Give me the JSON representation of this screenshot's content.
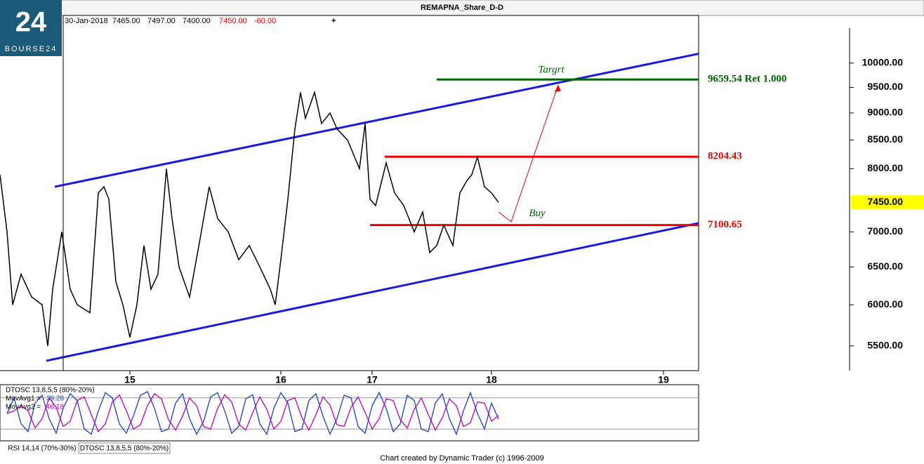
{
  "header": {
    "title": "REMAPNA_Share_D-D",
    "date": "30-Jan-2018",
    "open": "7465.00",
    "high": "7497.00",
    "low": "7400.00",
    "close": "7450.00",
    "change": "-60.00"
  },
  "logo": {
    "mark": "24",
    "text": "BOURSE24"
  },
  "tabs": [
    "RSI 14,14 (70%-30%)",
    "DTOSC 13,8,5,5 (80%-20%)"
  ],
  "footer": "Chart created by Dynamic Trader  (c) 1996-2009",
  "chart_data": [
    {
      "type": "line",
      "log_scale": true,
      "color": "#000000",
      "xlim": [
        0,
        995
      ],
      "xticks": [
        {
          "value": 185,
          "label": "15"
        },
        {
          "value": 400,
          "label": "16"
        },
        {
          "value": 530,
          "label": "17"
        },
        {
          "value": 700,
          "label": "18"
        },
        {
          "value": 945,
          "label": "19"
        }
      ],
      "ylim": [
        5220,
        11060
      ],
      "yticks": [
        {
          "value": 5500,
          "label": "5500.00"
        },
        {
          "value": 6000,
          "label": "6000.00"
        },
        {
          "value": 6500,
          "label": "6500.00"
        },
        {
          "value": 7000,
          "label": "7000.00"
        },
        {
          "value": 8000,
          "label": "8000.00"
        },
        {
          "value": 8500,
          "label": "8500.00"
        },
        {
          "value": 9000,
          "label": "9000.00"
        },
        {
          "value": 9500,
          "label": "9500.00"
        },
        {
          "value": 10000,
          "label": "10000.00"
        }
      ],
      "last_price": {
        "value": 7450,
        "label": "7450.00"
      },
      "x": [
        0,
        10,
        18,
        30,
        45,
        60,
        68,
        75,
        88,
        100,
        110,
        128,
        140,
        148,
        155,
        165,
        175,
        185,
        195,
        205,
        215,
        225,
        237,
        245,
        255,
        270,
        285,
        298,
        310,
        325,
        340,
        355,
        370,
        385,
        392,
        400,
        410,
        420,
        428,
        435,
        448,
        458,
        470,
        480,
        495,
        505,
        512,
        520,
        527,
        535,
        550,
        562,
        575,
        590,
        602,
        612,
        622,
        632,
        645,
        655,
        665,
        672,
        680,
        690,
        700,
        710
      ],
      "values": [
        7900,
        7000,
        6000,
        6400,
        6100,
        6000,
        5500,
        6200,
        7000,
        6200,
        6000,
        5900,
        7600,
        7700,
        7500,
        6300,
        6000,
        5600,
        6000,
        6800,
        6200,
        6400,
        8000,
        7200,
        6500,
        6100,
        6900,
        7700,
        7200,
        7000,
        6600,
        6800,
        6500,
        6200,
        6000,
        6600,
        7500,
        8700,
        9400,
        8900,
        9400,
        8800,
        9000,
        8700,
        8500,
        8200,
        8000,
        8800,
        7500,
        7400,
        8100,
        7600,
        7400,
        7000,
        7300,
        6700,
        6800,
        7100,
        6800,
        7600,
        7800,
        7900,
        8200,
        7700,
        7600,
        7450
      ],
      "channel_color": "#1a1adc",
      "channels": [
        {
          "x": [
            78,
            995
          ],
          "y": [
            7700,
            10200
          ]
        },
        {
          "x": [
            66,
            995
          ],
          "y": [
            5330,
            7130
          ]
        }
      ],
      "levels": [
        {
          "value": 9659.54,
          "label": "9659.54 Ret 1.000",
          "color": "#006400",
          "x_start": 622
        },
        {
          "value": 8204.43,
          "color": "#ee0000",
          "x_start": 548
        },
        {
          "value": 7100.65,
          "color": "#ee0000",
          "x_start": 527
        }
      ],
      "arrow": {
        "color": "#ee0000",
        "x": [
          710,
          728,
          795
        ],
        "y": [
          7300,
          7150,
          9550
        ]
      },
      "annotations": [
        {
          "text": "Targrt",
          "x": 785,
          "y": 9850
        },
        {
          "text": "Buy",
          "x": 765,
          "y": 7270
        }
      ]
    },
    {
      "type": "line",
      "title": "DTOSC 13,8,5,5 (80%-20%)",
      "xlim": [
        0,
        995
      ],
      "ylim": [
        0,
        100
      ],
      "levels": [
        80,
        20
      ],
      "x": [
        10,
        20,
        30,
        40,
        50,
        60,
        70,
        80,
        90,
        100,
        110,
        120,
        130,
        140,
        150,
        160,
        170,
        180,
        190,
        200,
        210,
        220,
        230,
        240,
        250,
        260,
        270,
        280,
        290,
        300,
        310,
        320,
        330,
        340,
        350,
        360,
        370,
        380,
        390,
        400,
        410,
        420,
        430,
        440,
        450,
        460,
        470,
        480,
        490,
        500,
        510,
        520,
        530,
        540,
        550,
        560,
        570,
        580,
        590,
        600,
        610,
        620,
        630,
        640,
        650,
        660,
        670,
        680,
        690,
        700,
        710
      ],
      "series": [
        {
          "name": "MovAvg1 =",
          "color": "#1f3fbf",
          "last": 39.28,
          "values": [
            50,
            80,
            30,
            15,
            70,
            85,
            40,
            12,
            60,
            88,
            75,
            20,
            10,
            55,
            90,
            80,
            30,
            12,
            45,
            85,
            92,
            60,
            15,
            20,
            70,
            88,
            40,
            10,
            35,
            82,
            90,
            55,
            12,
            25,
            78,
            86,
            30,
            10,
            60,
            90,
            70,
            15,
            20,
            75,
            88,
            45,
            10,
            40,
            85,
            80,
            25,
            12,
            65,
            90,
            60,
            15,
            30,
            85,
            75,
            20,
            15,
            70,
            88,
            40,
            10,
            55,
            90,
            50,
            20,
            70,
            39.28
          ]
        },
        {
          "name": "MovAvg2 =",
          "color": "#c000c0",
          "last": 46.18,
          "values": [
            50,
            55,
            65,
            55,
            22,
            40,
            80,
            62,
            25,
            35,
            75,
            82,
            48,
            15,
            30,
            72,
            86,
            55,
            20,
            28,
            65,
            88,
            78,
            38,
            18,
            45,
            80,
            65,
            25,
            20,
            60,
            86,
            72,
            30,
            18,
            52,
            82,
            58,
            20,
            35,
            75,
            80,
            42,
            18,
            48,
            82,
            66,
            28,
            25,
            62,
            82,
            52,
            20,
            40,
            78,
            75,
            38,
            22,
            58,
            80,
            48,
            18,
            42,
            78,
            65,
            25,
            32,
            72,
            70,
            35,
            46.18
          ]
        }
      ]
    }
  ]
}
